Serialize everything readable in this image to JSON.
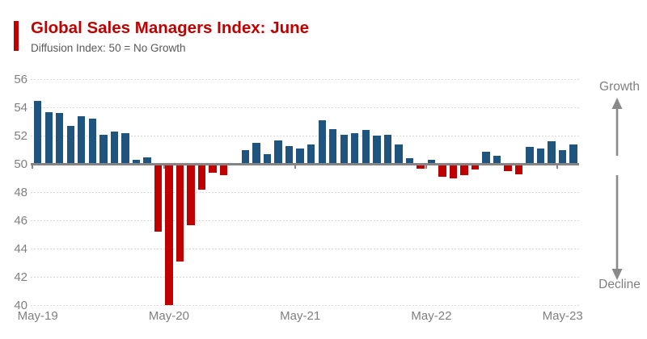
{
  "header": {
    "title": "Global Sales Managers Index: June",
    "subtitle": "Diffusion Index: 50 = No Growth",
    "accent_color": "#C00000"
  },
  "annotations": {
    "growth_label": "Growth",
    "decline_label": "Decline"
  },
  "chart_data": {
    "type": "bar",
    "title": "Global Sales Managers Index: June",
    "subtitle": "Diffusion Index: 50 = No Growth",
    "categories": [
      "May-19",
      "Jun-19",
      "Jul-19",
      "Aug-19",
      "Sep-19",
      "Oct-19",
      "Nov-19",
      "Dec-19",
      "Jan-20",
      "Feb-20",
      "Mar-20",
      "Apr-20",
      "May-20",
      "Jun-20",
      "Jul-20",
      "Aug-20",
      "Sep-20",
      "Oct-20",
      "Nov-20",
      "Dec-20",
      "Jan-21",
      "Feb-21",
      "Mar-21",
      "Apr-21",
      "May-21",
      "Jun-21",
      "Jul-21",
      "Aug-21",
      "Sep-21",
      "Oct-21",
      "Nov-21",
      "Dec-21",
      "Jan-22",
      "Feb-22",
      "Mar-22",
      "Apr-22",
      "May-22",
      "Jun-22",
      "Jul-22",
      "Aug-22",
      "Sep-22",
      "Oct-22",
      "Nov-22",
      "Dec-22",
      "Jan-23",
      "Feb-23",
      "Mar-23",
      "Apr-23",
      "May-23",
      "Jun-23"
    ],
    "values": [
      54.5,
      53.7,
      53.6,
      52.7,
      53.4,
      53.2,
      52.1,
      52.3,
      52.2,
      50.3,
      50.5,
      45.2,
      40.0,
      43.1,
      45.7,
      48.2,
      49.4,
      49.2,
      50.0,
      51.0,
      51.5,
      50.7,
      51.7,
      51.3,
      51.1,
      51.4,
      53.1,
      52.5,
      52.1,
      52.2,
      52.4,
      52.0,
      52.1,
      51.4,
      50.4,
      49.7,
      50.3,
      49.1,
      49.0,
      49.2,
      49.6,
      50.9,
      50.6,
      49.5,
      49.3,
      51.2,
      51.1,
      51.6,
      51.0,
      51.4
    ],
    "baseline": 50,
    "ylim": [
      40,
      56
    ],
    "yticks": [
      56,
      54,
      52,
      50,
      48,
      46,
      44,
      42,
      40
    ],
    "xtick_labels": [
      "May-19",
      "May-20",
      "May-21",
      "May-22",
      "May-23"
    ],
    "xtick_indices": [
      0,
      12,
      24,
      36,
      48
    ],
    "grid": true,
    "legend": false,
    "colors": {
      "above_baseline": "#1F547E",
      "below_baseline": "#C00000",
      "gridline": "#D9D9D9",
      "axis": "#848484",
      "tick_text": "#7F7F7F",
      "arrow": "#8A8A8A"
    }
  }
}
